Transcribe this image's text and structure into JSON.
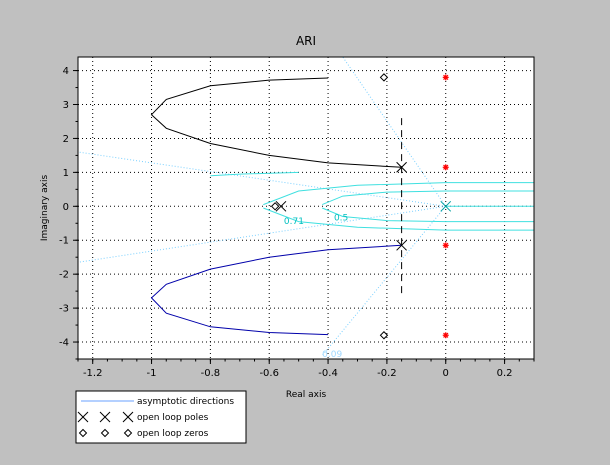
{
  "chart_data": {
    "type": "scatter",
    "title": "ARI",
    "xlabel": "Real axis",
    "ylabel": "Imaginary axis",
    "xlim": [
      -1.25,
      0.3
    ],
    "ylim": [
      -4.5,
      4.4
    ],
    "x_ticks": [
      -1.2,
      -1,
      -0.8,
      -0.6,
      -0.4,
      -0.2,
      0,
      0.2
    ],
    "y_ticks": [
      -4,
      -3,
      -2,
      -1,
      0,
      1,
      2,
      3,
      4
    ],
    "grid": true,
    "legend_position": "bottom-left",
    "legend": [
      {
        "label": "asymptotic directions",
        "marker": "line",
        "color": "#6aa0ff"
      },
      {
        "label": "open loop poles",
        "marker": "x",
        "color": "#000000"
      },
      {
        "label": "open loop zeros",
        "marker": "diamond",
        "color": "#000000"
      }
    ],
    "series": [
      {
        "name": "open loop poles",
        "marker": "x",
        "color": "#000000",
        "points": [
          [
            -0.15,
            1.15
          ],
          [
            -0.15,
            -1.15
          ]
        ]
      },
      {
        "name": "open loop zeros",
        "marker": "diamond",
        "color": "#000000",
        "points": [
          [
            -0.21,
            3.8
          ],
          [
            -0.21,
            -3.8
          ],
          [
            -0.58,
            0.0
          ]
        ]
      },
      {
        "marker": "x",
        "color": "#000000",
        "points": [
          [
            -0.56,
            0.0
          ]
        ]
      },
      {
        "marker": "x",
        "color": "#00a0a0",
        "points": [
          [
            0.0,
            0.0
          ]
        ]
      },
      {
        "marker": "star",
        "color": "#ff0000",
        "points": [
          [
            0.0,
            3.8
          ],
          [
            0.0,
            1.15
          ],
          [
            0.0,
            -1.15
          ],
          [
            0.0,
            -3.8
          ]
        ]
      }
    ],
    "branches": [
      {
        "color": "#000000",
        "points": [
          [
            -0.4,
            3.78
          ],
          [
            -0.6,
            3.72
          ],
          [
            -0.8,
            3.55
          ],
          [
            -0.95,
            3.15
          ],
          [
            -1.0,
            2.7
          ],
          [
            -0.95,
            2.3
          ],
          [
            -0.8,
            1.85
          ],
          [
            -0.6,
            1.5
          ],
          [
            -0.4,
            1.28
          ],
          [
            -0.15,
            1.15
          ]
        ]
      },
      {
        "color": "#0000aa",
        "points": [
          [
            -0.4,
            -3.78
          ],
          [
            -0.6,
            -3.72
          ],
          [
            -0.8,
            -3.55
          ],
          [
            -0.95,
            -3.15
          ],
          [
            -1.0,
            -2.7
          ],
          [
            -0.95,
            -2.3
          ],
          [
            -0.8,
            -1.85
          ],
          [
            -0.6,
            -1.5
          ],
          [
            -0.4,
            -1.28
          ],
          [
            -0.15,
            -1.15
          ]
        ]
      }
    ],
    "asymptote": {
      "x": -0.15,
      "y_range": [
        -2.6,
        2.6
      ],
      "color": "#000000"
    },
    "zeta_lines": [
      {
        "points": [
          [
            0,
            0
          ],
          [
            -0.35,
            4.4
          ]
        ]
      },
      {
        "points": [
          [
            0,
            0
          ],
          [
            -0.42,
            -4.4
          ]
        ]
      },
      {
        "points": [
          [
            0,
            0
          ],
          [
            -1.25,
            1.6
          ]
        ]
      },
      {
        "points": [
          [
            0,
            0
          ],
          [
            -1.25,
            -1.65
          ]
        ]
      }
    ],
    "wn_curves": [
      {
        "points": [
          [
            -0.62,
            0.05
          ],
          [
            -0.5,
            0.45
          ],
          [
            -0.3,
            0.62
          ],
          [
            0.0,
            0.7
          ],
          [
            0.3,
            0.7
          ]
        ]
      },
      {
        "points": [
          [
            -0.62,
            -0.05
          ],
          [
            -0.5,
            -0.45
          ],
          [
            -0.3,
            -0.62
          ],
          [
            0.0,
            -0.7
          ],
          [
            0.3,
            -0.7
          ]
        ]
      },
      {
        "points": [
          [
            -0.42,
            0.05
          ],
          [
            -0.35,
            0.3
          ],
          [
            -0.2,
            0.42
          ],
          [
            0.0,
            0.45
          ],
          [
            0.3,
            0.45
          ]
        ]
      },
      {
        "points": [
          [
            -0.42,
            -0.05
          ],
          [
            -0.35,
            -0.3
          ],
          [
            -0.2,
            -0.42
          ],
          [
            0.0,
            -0.45
          ],
          [
            0.3,
            -0.45
          ]
        ]
      },
      {
        "points": [
          [
            -0.8,
            0.9
          ],
          [
            -0.7,
            0.95
          ],
          [
            -0.5,
            1.0
          ]
        ]
      },
      {
        "points": [
          [
            0.0,
            0.0
          ],
          [
            0.3,
            0.0
          ]
        ]
      }
    ],
    "annotations": [
      {
        "text": "0.71",
        "x": -0.55,
        "y": -0.52,
        "color": "#00c0c0"
      },
      {
        "text": "0.5",
        "x": -0.38,
        "y": -0.42,
        "color": "#00c0c0"
      },
      {
        "text": "0.09",
        "x": -0.42,
        "y": -4.8,
        "color": "#a0d8ff"
      }
    ]
  }
}
